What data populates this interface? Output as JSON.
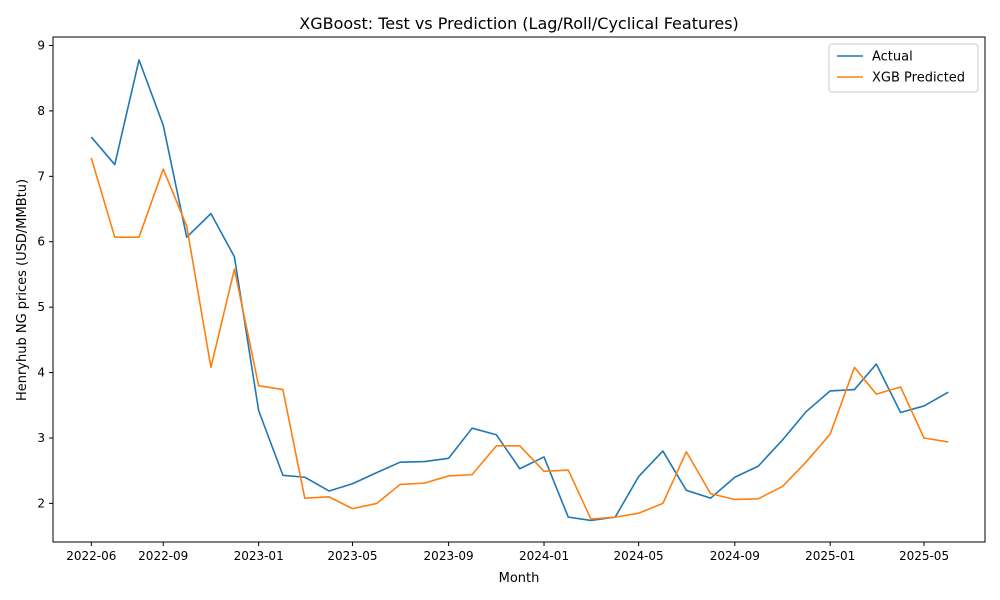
{
  "chart_data": {
    "type": "line",
    "title": "XGBoost: Test vs Prediction (Lag/Roll/Cyclical Features)",
    "xlabel": "Month",
    "ylabel": "Henryhub NG prices (USD/MMBtu)",
    "x": [
      "2022-06",
      "2022-07",
      "2022-08",
      "2022-09",
      "2022-10",
      "2022-11",
      "2022-12",
      "2023-01",
      "2023-02",
      "2023-03",
      "2023-04",
      "2023-05",
      "2023-06",
      "2023-07",
      "2023-08",
      "2023-09",
      "2023-10",
      "2023-11",
      "2023-12",
      "2024-01",
      "2024-02",
      "2024-03",
      "2024-04",
      "2024-05",
      "2024-06",
      "2024-07",
      "2024-08",
      "2024-09",
      "2024-10",
      "2024-11",
      "2024-12",
      "2025-01",
      "2025-02",
      "2025-03",
      "2025-04",
      "2025-05",
      "2025-06"
    ],
    "x_ticks": [
      "2022-06",
      "2022-09",
      "2023-01",
      "2023-05",
      "2023-09",
      "2024-01",
      "2024-05",
      "2024-09",
      "2025-01",
      "2025-05"
    ],
    "y_ticks": [
      2,
      3,
      4,
      5,
      6,
      7,
      8,
      9
    ],
    "ylim": [
      1.41,
      9.13
    ],
    "xlim": [
      "2022-04-13",
      "2025-07-18"
    ],
    "grid": false,
    "legend": "top-right",
    "series": [
      {
        "name": "Actual",
        "color": "#1f77b4",
        "values": [
          7.6,
          7.18,
          8.78,
          7.78,
          6.07,
          6.43,
          5.77,
          3.42,
          2.43,
          2.4,
          2.19,
          2.3,
          2.47,
          2.63,
          2.64,
          2.69,
          3.15,
          3.05,
          2.53,
          2.71,
          1.79,
          1.74,
          1.79,
          2.41,
          2.8,
          2.2,
          2.08,
          2.4,
          2.57,
          2.97,
          3.4,
          3.72,
          3.74,
          4.13,
          3.39,
          3.49,
          3.7
        ]
      },
      {
        "name": "XGB Predicted",
        "color": "#ff7f0e",
        "values": [
          7.28,
          6.07,
          6.07,
          7.11,
          6.24,
          4.08,
          5.58,
          3.8,
          3.74,
          2.08,
          2.1,
          1.92,
          2.0,
          2.29,
          2.31,
          2.42,
          2.44,
          2.88,
          2.88,
          2.49,
          2.51,
          1.76,
          1.79,
          1.85,
          2.0,
          2.79,
          2.15,
          2.06,
          2.07,
          2.26,
          2.63,
          3.06,
          4.08,
          3.67,
          3.78,
          3.0,
          2.94
        ]
      }
    ]
  }
}
